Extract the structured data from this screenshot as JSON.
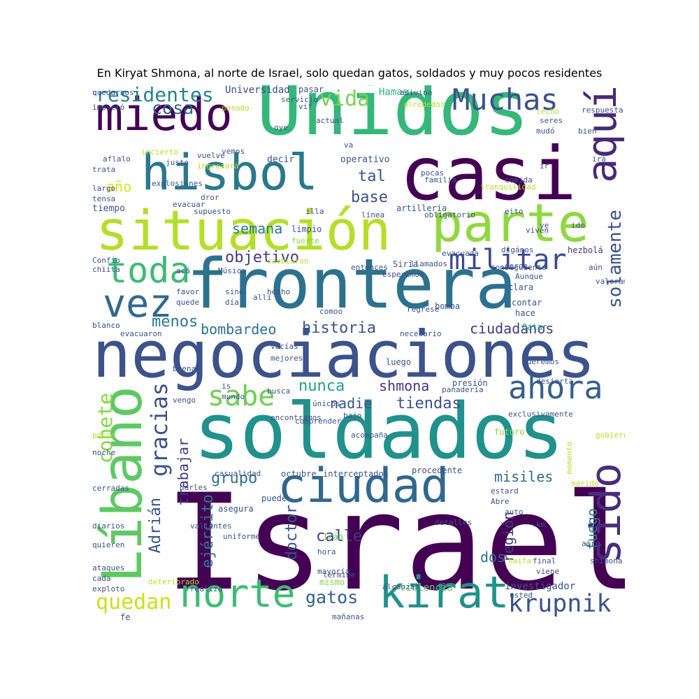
{
  "title": "En Kiryat Shmona, al norte de Israel, solo quedan gatos, soldados y muy pocos residentes",
  "words": [
    {
      "text": "Israel",
      "color": "#440154"
    },
    {
      "text": "negociaciones",
      "color": "#3b528b"
    },
    {
      "text": "soldados",
      "color": "#21918c"
    },
    {
      "text": "frontera",
      "color": "#2c728e"
    },
    {
      "text": "Unidos",
      "color": "#35b779"
    },
    {
      "text": "casi",
      "color": "#440154"
    },
    {
      "text": "situación",
      "color": "#b5de2b"
    },
    {
      "text": "hisbol",
      "color": "#2a788e"
    },
    {
      "text": "miedo",
      "color": "#440154"
    },
    {
      "text": "parte",
      "color": "#90d743"
    },
    {
      "text": "Líbano",
      "color": "#5ec962"
    },
    {
      "text": "ciudad",
      "color": "#31688e"
    },
    {
      "text": "norte",
      "color": "#3dbc74"
    },
    {
      "text": "kirat",
      "color": "#21918c"
    },
    {
      "text": "sido",
      "color": "#472d7b"
    },
    {
      "text": "vez",
      "color": "#31688e"
    },
    {
      "text": "toda",
      "color": "#3bbb75"
    },
    {
      "text": "Muchas",
      "color": "#3b528b"
    },
    {
      "text": "aquí",
      "color": "#482878"
    },
    {
      "text": "ahora",
      "color": "#355f8d"
    },
    {
      "text": "militar",
      "color": "#3e4a89"
    },
    {
      "text": "krupnik",
      "color": "#3b528b"
    },
    {
      "text": "sabe",
      "color": "#6ece58"
    },
    {
      "text": "quedan",
      "color": "#c8e020"
    },
    {
      "text": "residentes",
      "color": "#26828e"
    },
    {
      "text": "gracias",
      "color": "#3b528b"
    },
    {
      "text": "cohete",
      "color": "#86d549"
    },
    {
      "text": "solamente",
      "color": "#3b528b"
    },
    {
      "text": "vida",
      "color": "#7ad151"
    },
    {
      "text": "cosa",
      "color": "#31688e"
    },
    {
      "text": "objetivo",
      "color": "#443a83"
    },
    {
      "text": "menos",
      "color": "#2a788e"
    },
    {
      "text": "historia",
      "color": "#3b528b"
    },
    {
      "text": "bombardeo",
      "color": "#2c728e"
    },
    {
      "text": "ciudadanos",
      "color": "#443983"
    },
    {
      "text": "shmona",
      "color": "#453781"
    },
    {
      "text": "tiendas",
      "color": "#3b528b"
    },
    {
      "text": "nunca",
      "color": "#1fa187"
    },
    {
      "text": "nadie",
      "color": "#3b528b"
    },
    {
      "text": "misiles",
      "color": "#31688e"
    },
    {
      "text": "grupo",
      "color": "#2c728e"
    },
    {
      "text": "trabajar",
      "color": "#443983"
    },
    {
      "text": "Adrián",
      "color": "#3b528b"
    },
    {
      "text": "ejército",
      "color": "#2a788e"
    },
    {
      "text": "región",
      "color": "#443983"
    },
    {
      "text": "fuego",
      "color": "#26828e"
    },
    {
      "text": "calle",
      "color": "#443983"
    },
    {
      "text": "doctor",
      "color": "#3b528b"
    },
    {
      "text": "gatos",
      "color": "#355f8d"
    },
    {
      "text": "dos",
      "color": "#2c728e"
    },
    {
      "text": "semana",
      "color": "#2a788e"
    },
    {
      "text": "tal",
      "color": "#3b528b"
    },
    {
      "text": "base",
      "color": "#3b528b"
    },
    {
      "text": "año",
      "color": "#d8e219"
    },
    {
      "text": "Hamas",
      "color": "#35b779"
    },
    {
      "text": "Universidad",
      "color": "#3e4a89"
    },
    {
      "text": "pasar",
      "color": "#3b528b"
    },
    {
      "text": "investigador",
      "color": "#3b528b"
    },
    {
      "text": "violencia",
      "color": "#5ec962"
    },
    {
      "text": "mismo",
      "color": "#86d549"
    },
    {
      "text": "presión",
      "color": "#3b528b"
    },
    {
      "text": "luego",
      "color": "#3b528b"
    },
    {
      "text": "Qatar",
      "color": "#1fa187"
    },
    {
      "text": "Siria",
      "color": "#3b528b"
    },
    {
      "text": "Irán",
      "color": "#5ec962"
    },
    {
      "text": "termine",
      "color": "#3b528b"
    },
    {
      "text": "decir",
      "color": "#3b528b"
    },
    {
      "text": "operativo",
      "color": "#3b528b"
    },
    {
      "text": "artillería",
      "color": "#3b528b"
    },
    {
      "text": "tiempo",
      "color": "#3b528b"
    },
    {
      "text": "limpio",
      "color": "#3b528b"
    },
    {
      "text": "fuerte",
      "color": "#86d549"
    },
    {
      "text": "viven",
      "color": "#3b528b"
    },
    {
      "text": "hezbolá",
      "color": "#443983"
    },
    {
      "text": "clara",
      "color": "#3b528b"
    },
    {
      "text": "contar",
      "color": "#3b528b"
    },
    {
      "text": "hace",
      "color": "#3b528b"
    },
    {
      "text": "bomba",
      "color": "#3b528b"
    },
    {
      "text": "mejores",
      "color": "#3b528b"
    },
    {
      "text": "vacías",
      "color": "#3b528b"
    },
    {
      "text": "queremos",
      "color": "#3b528b"
    },
    {
      "text": "desierta",
      "color": "#3b528b"
    },
    {
      "text": "panadería",
      "color": "#3b528b"
    },
    {
      "text": "exclusivamente",
      "color": "#3b528b"
    },
    {
      "text": "futuro",
      "color": "#86d549"
    },
    {
      "text": "momento",
      "color": "#b5de2b"
    },
    {
      "text": "procedente",
      "color": "#3b528b"
    },
    {
      "text": "interceptados",
      "color": "#3b528b"
    },
    {
      "text": "octubre",
      "color": "#3b528b"
    },
    {
      "text": "casualidad",
      "color": "#3b528b"
    },
    {
      "text": "puede",
      "color": "#3b528b"
    },
    {
      "text": "asegura",
      "color": "#3b528b"
    },
    {
      "text": "uniforme",
      "color": "#3b528b"
    },
    {
      "text": "hora",
      "color": "#3b528b"
    },
    {
      "text": "mayoría",
      "color": "#3b528b"
    },
    {
      "text": "alcanzan",
      "color": "#3b528b"
    },
    {
      "text": "usted",
      "color": "#3b528b"
    },
    {
      "text": "mañanas",
      "color": "#3b528b"
    },
    {
      "text": "fe",
      "color": "#3b528b"
    },
    {
      "text": "deteriorado",
      "color": "#b5de2b"
    },
    {
      "text": "realiza",
      "color": "#3b528b"
    },
    {
      "text": "cada",
      "color": "#3b528b"
    },
    {
      "text": "ataques",
      "color": "#3b528b"
    },
    {
      "text": "quieren",
      "color": "#3b528b"
    },
    {
      "text": "diarios",
      "color": "#3b528b"
    },
    {
      "text": "cerradas",
      "color": "#3b528b"
    },
    {
      "text": "darles",
      "color": "#3b528b"
    },
    {
      "text": "pocos",
      "color": "#b5de2b"
    },
    {
      "text": "noche",
      "color": "#3b528b"
    },
    {
      "text": "is",
      "color": "#3b528b"
    },
    {
      "text": "mundo",
      "color": "#3b528b"
    },
    {
      "text": "busca",
      "color": "#3b528b"
    },
    {
      "text": "únicos",
      "color": "#3b528b"
    },
    {
      "text": "bajo",
      "color": "#3b528b"
    },
    {
      "text": "km",
      "color": "#3b528b"
    },
    {
      "text": "final",
      "color": "#3b528b"
    },
    {
      "text": "viene",
      "color": "#3b528b"
    },
    {
      "text": "shimona",
      "color": "#3b528b"
    },
    {
      "text": "aire",
      "color": "#3b528b"
    },
    {
      "text": "marido",
      "color": "#b5de2b"
    },
    {
      "text": "estard",
      "color": "#3b528b"
    },
    {
      "text": "Abre",
      "color": "#3b528b"
    },
    {
      "text": "auto",
      "color": "#3b528b"
    },
    {
      "text": "haifa",
      "color": "#b5de2b"
    },
    {
      "text": "blanco",
      "color": "#3b528b"
    },
    {
      "text": "evacuaron",
      "color": "#3b528b"
    },
    {
      "text": "favor",
      "color": "#3b528b"
    },
    {
      "text": "quede",
      "color": "#3b528b"
    },
    {
      "text": "sino",
      "color": "#3b528b"
    },
    {
      "text": "día",
      "color": "#3b528b"
    },
    {
      "text": "hecho",
      "color": "#3b528b"
    },
    {
      "text": "allí",
      "color": "#3b528b"
    },
    {
      "text": "comoo",
      "color": "#3b528b"
    },
    {
      "text": "acá",
      "color": "#3b528b"
    },
    {
      "text": "Confío",
      "color": "#3b528b"
    },
    {
      "text": "chiita",
      "color": "#3b528b"
    },
    {
      "text": "Música",
      "color": "#3b528b"
    },
    {
      "text": "cambiaron",
      "color": "#b5de2b"
    },
    {
      "text": "entonces",
      "color": "#3b528b"
    },
    {
      "text": "llamados",
      "color": "#3b528b"
    },
    {
      "text": "evacuada",
      "color": "#3b528b"
    },
    {
      "text": "doron",
      "color": "#3b528b"
    },
    {
      "text": "Aunque",
      "color": "#3b528b"
    },
    {
      "text": "aún",
      "color": "#3b528b"
    },
    {
      "text": "impactó",
      "color": "#3b528b"
    },
    {
      "text": "pasado",
      "color": "#b5de2b"
    },
    {
      "text": "oye",
      "color": "#3b528b"
    },
    {
      "text": "vemos",
      "color": "#3b528b"
    },
    {
      "text": "vuelve",
      "color": "#3b528b"
    },
    {
      "text": "justo",
      "color": "#3b528b"
    },
    {
      "text": "incierto",
      "color": "#b5de2b"
    },
    {
      "text": "ingresará",
      "color": "#b5de2b"
    },
    {
      "text": "aflalo",
      "color": "#3b528b"
    },
    {
      "text": "trata",
      "color": "#3b528b"
    },
    {
      "text": "largo",
      "color": "#3b528b"
    },
    {
      "text": "tensa",
      "color": "#3b528b"
    },
    {
      "text": "dror",
      "color": "#3b528b"
    },
    {
      "text": "evacuar",
      "color": "#3b528b"
    },
    {
      "text": "supuesto",
      "color": "#3b528b"
    },
    {
      "text": "illa",
      "color": "#3b528b"
    },
    {
      "text": "va",
      "color": "#3b528b"
    },
    {
      "text": "pocas",
      "color": "#3b528b"
    },
    {
      "text": "familia",
      "color": "#3b528b"
    },
    {
      "text": "mudó",
      "color": "#3b528b"
    },
    {
      "text": "comida",
      "color": "#3b528b"
    },
    {
      "text": "eito",
      "color": "#3b528b"
    },
    {
      "text": "ir",
      "color": "#3b528b"
    },
    {
      "text": "ve",
      "color": "#3b528b"
    },
    {
      "text": "ido",
      "color": "#3b528b"
    },
    {
      "text": "techo",
      "color": "#b5de2b"
    },
    {
      "text": "seres",
      "color": "#3b528b"
    },
    {
      "text": "respuesta",
      "color": "#3b528b"
    },
    {
      "text": "adivina",
      "color": "#3b528b"
    },
    {
      "text": "alrededor",
      "color": "#b5de2b"
    },
    {
      "text": "servicio",
      "color": "#3b528b"
    },
    {
      "text": "vif",
      "color": "#3b528b"
    },
    {
      "text": "actual",
      "color": "#3b528b"
    },
    {
      "text": "explosiones",
      "color": "#3b528b"
    },
    {
      "text": "línea",
      "color": "#3b528b"
    },
    {
      "text": "esperemos",
      "color": "#3b528b"
    },
    {
      "text": "regrese",
      "color": "#3b528b"
    },
    {
      "text": "necesario",
      "color": "#3b528b"
    },
    {
      "text": "buena",
      "color": "#3b528b"
    },
    {
      "text": "vengo",
      "color": "#3b528b"
    },
    {
      "text": "encontramos",
      "color": "#3b528b"
    },
    {
      "text": "comprender",
      "color": "#3b528b"
    },
    {
      "text": "acompaña",
      "color": "#3b528b"
    },
    {
      "text": "valientes",
      "color": "#3b528b"
    },
    {
      "text": "detalles",
      "color": "#3b528b"
    },
    {
      "text": "gobierno",
      "color": "#b5de2b"
    },
    {
      "text": "tranquilidad",
      "color": "#b5de2b"
    },
    {
      "text": "obligatorio",
      "color": "#3b528b"
    },
    {
      "text": "consiguiente",
      "color": "#3b528b"
    },
    {
      "text": "dígános",
      "color": "#3b528b"
    },
    {
      "text": "bien",
      "color": "#3b528b"
    },
    {
      "text": "irá",
      "color": "#3b528b"
    },
    {
      "text": "valoramos",
      "color": "#3b528b"
    },
    {
      "text": "exploto",
      "color": "#3b528b"
    },
    {
      "text": "quedarnos",
      "color": "#3b528b"
    },
    {
      "text": "c",
      "color": "#3b528b"
    }
  ]
}
